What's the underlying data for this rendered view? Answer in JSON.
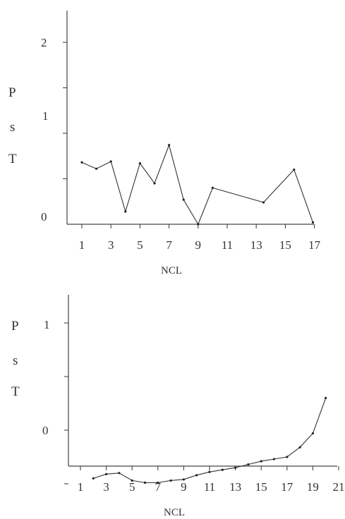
{
  "chart_data": [
    {
      "type": "line",
      "xlabel": "NCL",
      "ylabel_letters": [
        "P",
        "s",
        "T"
      ],
      "x_ticks": [
        "1",
        "3",
        "5",
        "7",
        "9",
        "11",
        "13",
        "15",
        "17"
      ],
      "y_ticks": [
        "0",
        "1",
        "2"
      ],
      "xlim": [
        0,
        18
      ],
      "ylim": [
        0,
        2.4
      ],
      "grid": false,
      "series": [
        {
          "x": [
            1,
            2,
            3,
            4,
            5,
            6,
            7,
            8,
            9,
            10,
            13.5,
            15.6,
            16.9
          ],
          "y": [
            0.68,
            0.61,
            0.69,
            0.14,
            0.67,
            0.45,
            0.87,
            0.27,
            0.0,
            0.4,
            0.24,
            0.6,
            0.02
          ]
        }
      ]
    },
    {
      "type": "line",
      "xlabel": "NCL",
      "ylabel_letters": [
        "P",
        "s",
        "T"
      ],
      "x_ticks": [
        "1",
        "3",
        "5",
        "7",
        "9",
        "11",
        "13",
        "15",
        "17",
        "19",
        "21"
      ],
      "y_ticks": [
        "0",
        "1"
      ],
      "xlim": [
        0,
        21
      ],
      "ylim": [
        -0.5,
        1.25
      ],
      "grid": false,
      "series": [
        {
          "x": [
            2,
            3,
            4,
            5,
            6,
            7,
            8,
            9,
            10,
            11,
            12,
            13,
            14,
            15,
            16,
            17,
            18,
            19,
            20
          ],
          "y": [
            -0.45,
            -0.41,
            -0.4,
            -0.47,
            -0.49,
            -0.49,
            -0.47,
            -0.46,
            -0.42,
            -0.39,
            -0.37,
            -0.35,
            -0.32,
            -0.29,
            -0.27,
            -0.25,
            -0.16,
            -0.03,
            0.3
          ]
        }
      ]
    }
  ]
}
